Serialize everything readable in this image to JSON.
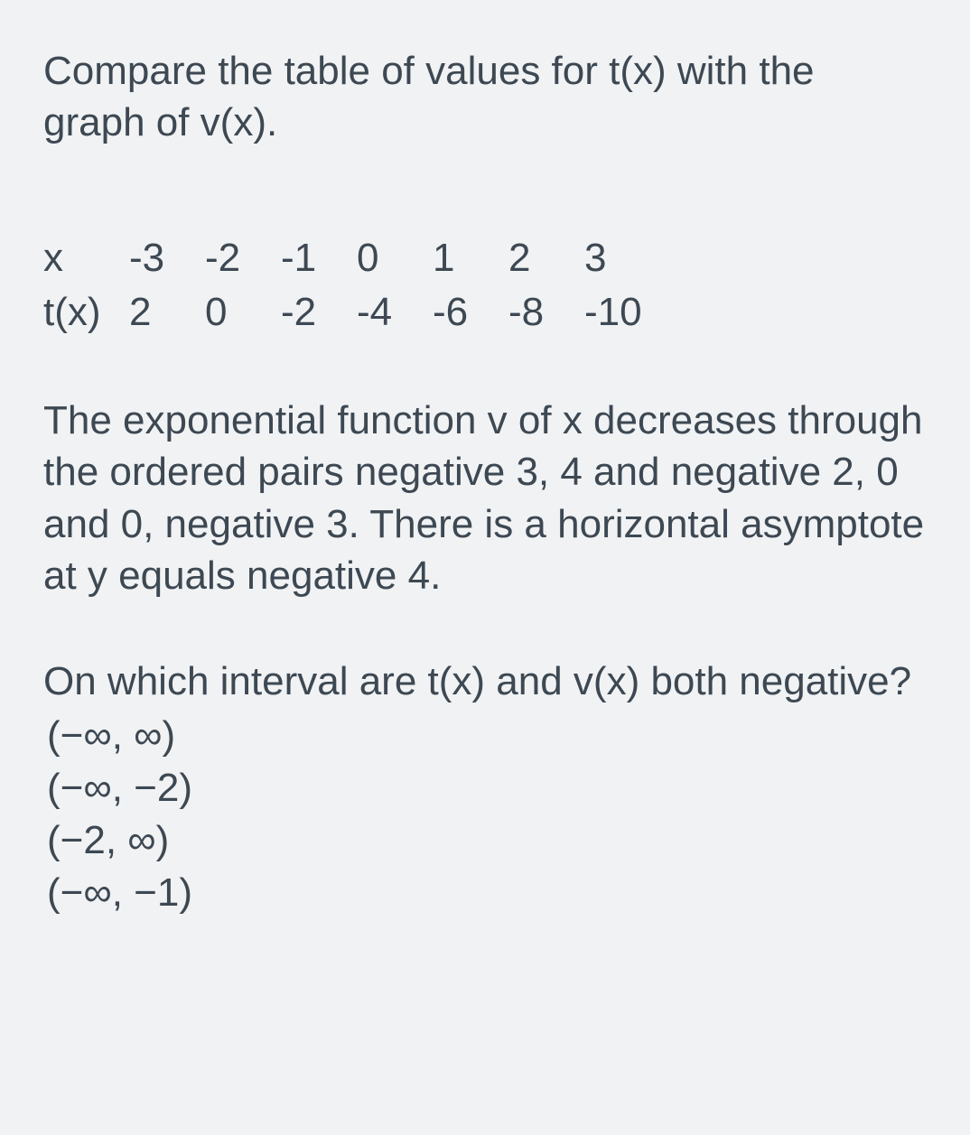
{
  "intro": "Compare the table of values for t(x) with the graph of v(x).",
  "table": {
    "row1_label": "x",
    "row2_label": "t(x)",
    "x_values": [
      "-3",
      "-2",
      "-1",
      "0",
      "1",
      "2",
      "3"
    ],
    "t_values": [
      "2",
      "0",
      "-2",
      "-4",
      "-6",
      "-8",
      "-10"
    ]
  },
  "description": "The exponential function v of x decreases through the ordered pairs negative 3, 4 and negative 2, 0 and 0, negative 3. There is a horizontal asymptote at y equals negative 4.",
  "question": "On which interval are t(x) and v(x) both negative?",
  "options": [
    "(−∞, ∞)",
    "(−∞, −2)",
    "(−2, ∞)",
    "(−∞, −1)"
  ],
  "styles": {
    "background_color": "#f0f2f4",
    "text_color": "#3d4852",
    "font_size_pt": 33,
    "font_family": "Arial"
  }
}
